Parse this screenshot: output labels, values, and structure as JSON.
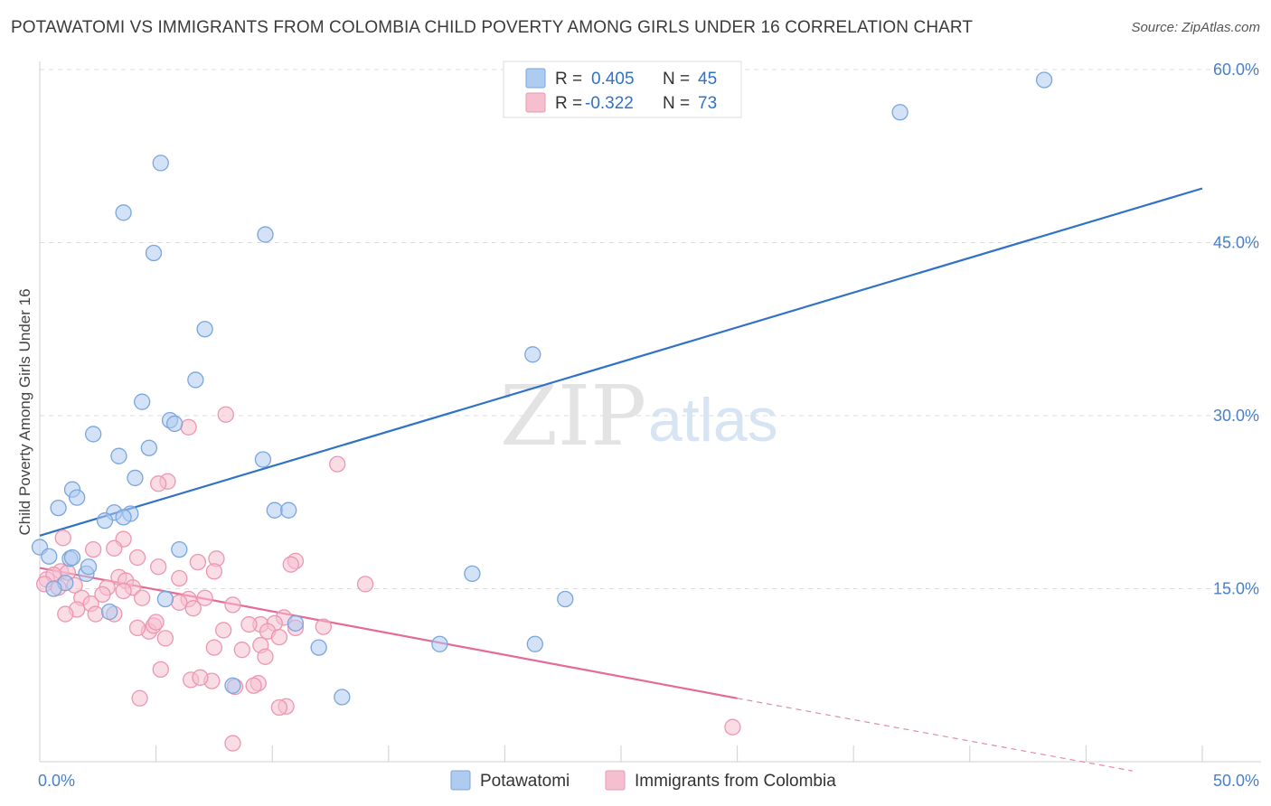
{
  "title": "POTAWATOMI VS IMMIGRANTS FROM COLOMBIA CHILD POVERTY AMONG GIRLS UNDER 16 CORRELATION CHART",
  "source": "Source: ZipAtlas.com",
  "watermark": {
    "zip": "ZIP",
    "atlas": "atlas"
  },
  "legend": {
    "r_label": "R =",
    "n_label": "N =",
    "potawatomi": {
      "r": "0.405",
      "n": "45"
    },
    "colombia": {
      "r": "-0.322",
      "n": "73"
    }
  },
  "bottom_legend": {
    "potawatomi": "Potawatomi",
    "colombia": "Immigrants from Colombia"
  },
  "colors": {
    "blue_fill": "#aecbf0",
    "blue_stroke": "#7aa6dc",
    "blue_line": "#2f72c8",
    "pink_fill": "#f6bfd0",
    "pink_stroke": "#ec97b2",
    "pink_line": "#e46a97",
    "accent_text": "#4a7fc9",
    "grid": "#dddddd"
  },
  "chart_data": {
    "type": "scatter",
    "title": "POTAWATOMI VS IMMIGRANTS FROM COLOMBIA CHILD POVERTY AMONG GIRLS UNDER 16 CORRELATION CHART",
    "xlabel": "",
    "ylabel": "Child Poverty Among Girls Under 16",
    "xlim": [
      0,
      50
    ],
    "ylim": [
      0,
      60
    ],
    "x_tick_labels": [
      "0.0%",
      "50.0%"
    ],
    "y_ticks": [
      15,
      30,
      45,
      60
    ],
    "y_tick_labels": [
      "15.0%",
      "30.0%",
      "45.0%",
      "60.0%"
    ],
    "grid": true,
    "series": [
      {
        "name": "Potawatomi",
        "r": 0.405,
        "n": 45,
        "trend": {
          "x0": 0,
          "y0": 19.6,
          "x1": 50,
          "y1": 49.7
        },
        "points": [
          [
            5.2,
            51.9
          ],
          [
            3.6,
            47.6
          ],
          [
            4.9,
            44.1
          ],
          [
            9.7,
            45.7
          ],
          [
            7.1,
            37.5
          ],
          [
            21.2,
            35.3
          ],
          [
            6.7,
            33.1
          ],
          [
            4.4,
            31.2
          ],
          [
            5.6,
            29.6
          ],
          [
            5.8,
            29.3
          ],
          [
            2.3,
            28.4
          ],
          [
            3.4,
            26.5
          ],
          [
            4.7,
            27.2
          ],
          [
            9.6,
            26.2
          ],
          [
            4.1,
            24.6
          ],
          [
            1.4,
            23.6
          ],
          [
            1.6,
            22.9
          ],
          [
            0.8,
            22.0
          ],
          [
            3.2,
            21.6
          ],
          [
            3.9,
            21.5
          ],
          [
            10.1,
            21.8
          ],
          [
            10.7,
            21.8
          ],
          [
            3.6,
            21.2
          ],
          [
            2.8,
            20.9
          ],
          [
            0.0,
            18.6
          ],
          [
            0.4,
            17.8
          ],
          [
            1.3,
            17.6
          ],
          [
            6.0,
            18.4
          ],
          [
            1.1,
            15.5
          ],
          [
            0.6,
            15.0
          ],
          [
            2.0,
            16.3
          ],
          [
            2.1,
            16.9
          ],
          [
            18.6,
            16.3
          ],
          [
            22.6,
            14.1
          ],
          [
            5.4,
            14.1
          ],
          [
            3.0,
            13.0
          ],
          [
            11.0,
            12.0
          ],
          [
            12.0,
            9.9
          ],
          [
            17.2,
            10.2
          ],
          [
            21.3,
            10.2
          ],
          [
            8.3,
            6.6
          ],
          [
            13.0,
            5.6
          ],
          [
            37.0,
            56.3
          ],
          [
            43.2,
            59.1
          ],
          [
            1.4,
            17.7
          ]
        ]
      },
      {
        "name": "Immigrants from Colombia",
        "r": -0.322,
        "n": 73,
        "trend": {
          "x0": 0,
          "y0": 16.8,
          "x1": 30,
          "y1": 5.5,
          "dash_x1": 47,
          "dash_y1": -0.8
        },
        "points": [
          [
            8.0,
            30.1
          ],
          [
            6.4,
            29.0
          ],
          [
            12.8,
            25.8
          ],
          [
            5.5,
            24.3
          ],
          [
            5.1,
            24.1
          ],
          [
            1.0,
            19.4
          ],
          [
            3.6,
            19.3
          ],
          [
            2.3,
            18.4
          ],
          [
            3.2,
            18.5
          ],
          [
            4.2,
            17.7
          ],
          [
            7.6,
            17.6
          ],
          [
            11.0,
            17.4
          ],
          [
            6.8,
            17.3
          ],
          [
            10.8,
            17.1
          ],
          [
            5.1,
            16.9
          ],
          [
            7.5,
            16.5
          ],
          [
            0.9,
            16.5
          ],
          [
            1.2,
            16.4
          ],
          [
            3.4,
            16.0
          ],
          [
            3.7,
            15.7
          ],
          [
            6.0,
            15.9
          ],
          [
            0.3,
            15.8
          ],
          [
            0.6,
            16.2
          ],
          [
            0.2,
            15.4
          ],
          [
            0.8,
            15.1
          ],
          [
            1.5,
            15.3
          ],
          [
            2.9,
            15.1
          ],
          [
            4.0,
            15.1
          ],
          [
            3.6,
            14.8
          ],
          [
            14.0,
            15.4
          ],
          [
            4.4,
            14.2
          ],
          [
            1.8,
            14.2
          ],
          [
            6.4,
            14.1
          ],
          [
            6.0,
            13.8
          ],
          [
            7.1,
            14.2
          ],
          [
            2.2,
            13.7
          ],
          [
            1.6,
            13.2
          ],
          [
            8.3,
            13.6
          ],
          [
            6.6,
            13.3
          ],
          [
            2.4,
            12.8
          ],
          [
            1.1,
            12.8
          ],
          [
            3.2,
            12.8
          ],
          [
            10.5,
            12.5
          ],
          [
            9.5,
            11.9
          ],
          [
            10.1,
            12.0
          ],
          [
            11.0,
            11.6
          ],
          [
            4.7,
            11.3
          ],
          [
            4.2,
            11.6
          ],
          [
            4.9,
            11.8
          ],
          [
            12.2,
            11.7
          ],
          [
            9.8,
            11.3
          ],
          [
            7.9,
            11.4
          ],
          [
            10.3,
            10.8
          ],
          [
            5.4,
            10.7
          ],
          [
            9.5,
            10.1
          ],
          [
            7.5,
            9.9
          ],
          [
            8.7,
            9.7
          ],
          [
            9.7,
            9.1
          ],
          [
            5.2,
            8.0
          ],
          [
            6.5,
            7.1
          ],
          [
            7.4,
            7.0
          ],
          [
            9.4,
            6.8
          ],
          [
            9.2,
            6.6
          ],
          [
            8.4,
            6.5
          ],
          [
            4.3,
            5.5
          ],
          [
            10.6,
            4.8
          ],
          [
            10.3,
            4.7
          ],
          [
            29.8,
            3.0
          ],
          [
            8.3,
            1.6
          ],
          [
            6.9,
            7.3
          ],
          [
            5.0,
            12.1
          ],
          [
            9.0,
            11.9
          ],
          [
            2.7,
            14.5
          ]
        ]
      }
    ]
  }
}
